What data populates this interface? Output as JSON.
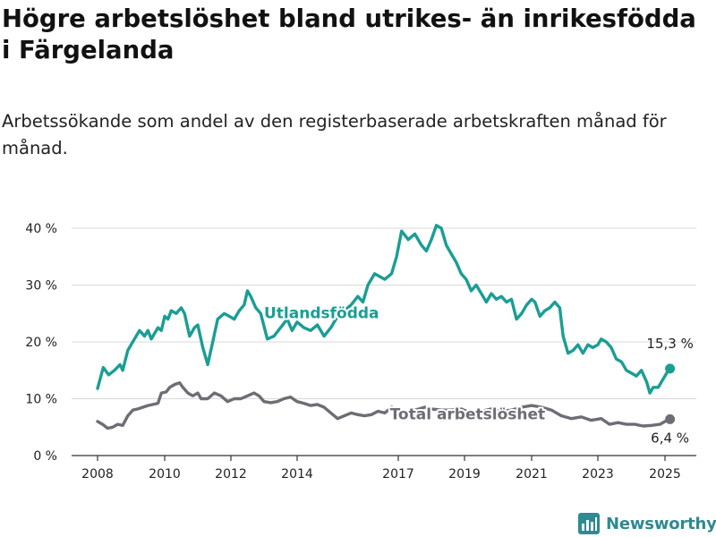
{
  "header": {
    "title": "Högre arbetslöshet bland utrikes- än inrikesfödda i Färgelanda",
    "subtitle": "Arbetssökande som andel av den registerbaserade arbetskraften månad för månad."
  },
  "brand": {
    "name": "Newsworthy",
    "icon": "newsworthy-chart-icon",
    "color": "#2f8a91"
  },
  "chart_data": {
    "type": "line",
    "title": "Högre arbetslöshet bland utrikes- än inrikesfödda i Färgelanda",
    "subtitle": "Arbetssökande som andel av den registerbaserade arbetskraften månad för månad.",
    "xlabel": "",
    "ylabel": "",
    "ylim": [
      0,
      40
    ],
    "xlim": [
      2007.6,
      2025.4
    ],
    "y_ticks": [
      0,
      10,
      20,
      30,
      40
    ],
    "y_tick_labels": [
      "0 %",
      "10 %",
      "20 %",
      "30 %",
      "40 %"
    ],
    "x_ticks": [
      2008,
      2010,
      2012,
      2014,
      2017,
      2019,
      2021,
      2023,
      2025
    ],
    "x_tick_labels": [
      "2008",
      "2010",
      "2012",
      "2014",
      "2017",
      "2019",
      "2021",
      "2023",
      "2025"
    ],
    "grid": "horizontal",
    "series": [
      {
        "name": "Utlandsfödda",
        "color": "#1a9e94",
        "end_label": "15,3 %",
        "points": [
          [
            2008.0,
            11.8
          ],
          [
            2008.17,
            15.5
          ],
          [
            2008.33,
            14.2
          ],
          [
            2008.5,
            15.0
          ],
          [
            2008.67,
            16.0
          ],
          [
            2008.75,
            15.0
          ],
          [
            2008.9,
            18.5
          ],
          [
            2009.1,
            20.5
          ],
          [
            2009.25,
            22.0
          ],
          [
            2009.4,
            21.0
          ],
          [
            2009.5,
            22.0
          ],
          [
            2009.6,
            20.5
          ],
          [
            2009.8,
            22.5
          ],
          [
            2009.9,
            22.0
          ],
          [
            2010.0,
            24.5
          ],
          [
            2010.1,
            24.0
          ],
          [
            2010.2,
            25.5
          ],
          [
            2010.35,
            25.0
          ],
          [
            2010.5,
            26.0
          ],
          [
            2010.6,
            25.0
          ],
          [
            2010.75,
            21.0
          ],
          [
            2010.9,
            22.5
          ],
          [
            2011.0,
            23.0
          ],
          [
            2011.15,
            19.0
          ],
          [
            2011.3,
            16.0
          ],
          [
            2011.45,
            20.0
          ],
          [
            2011.6,
            24.0
          ],
          [
            2011.8,
            25.0
          ],
          [
            2011.95,
            24.5
          ],
          [
            2012.1,
            24.0
          ],
          [
            2012.25,
            25.5
          ],
          [
            2012.4,
            26.5
          ],
          [
            2012.5,
            29.0
          ],
          [
            2012.6,
            28.0
          ],
          [
            2012.75,
            26.0
          ],
          [
            2012.9,
            25.0
          ],
          [
            2013.1,
            20.5
          ],
          [
            2013.3,
            21.0
          ],
          [
            2013.5,
            22.5
          ],
          [
            2013.7,
            24.0
          ],
          [
            2013.85,
            22.0
          ],
          [
            2014.0,
            23.5
          ],
          [
            2014.2,
            22.5
          ],
          [
            2014.4,
            22.0
          ],
          [
            2014.6,
            23.0
          ],
          [
            2014.8,
            21.0
          ],
          [
            2015.0,
            22.5
          ],
          [
            2015.2,
            24.5
          ],
          [
            2015.4,
            25.5
          ],
          [
            2015.6,
            26.5
          ],
          [
            2015.8,
            28.0
          ],
          [
            2015.95,
            27.0
          ],
          [
            2016.1,
            30.0
          ],
          [
            2016.3,
            32.0
          ],
          [
            2016.45,
            31.5
          ],
          [
            2016.6,
            31.0
          ],
          [
            2016.8,
            32.0
          ],
          [
            2016.95,
            35.0
          ],
          [
            2017.1,
            39.5
          ],
          [
            2017.3,
            38.0
          ],
          [
            2017.5,
            39.0
          ],
          [
            2017.7,
            37.0
          ],
          [
            2017.85,
            36.0
          ],
          [
            2018.0,
            38.0
          ],
          [
            2018.15,
            40.5
          ],
          [
            2018.3,
            40.0
          ],
          [
            2018.45,
            37.0
          ],
          [
            2018.6,
            35.5
          ],
          [
            2018.75,
            34.0
          ],
          [
            2018.9,
            32.0
          ],
          [
            2019.05,
            31.0
          ],
          [
            2019.2,
            29.0
          ],
          [
            2019.35,
            30.0
          ],
          [
            2019.5,
            28.5
          ],
          [
            2019.65,
            27.0
          ],
          [
            2019.8,
            28.5
          ],
          [
            2019.95,
            27.5
          ],
          [
            2020.1,
            28.0
          ],
          [
            2020.25,
            27.0
          ],
          [
            2020.4,
            27.5
          ],
          [
            2020.55,
            24.0
          ],
          [
            2020.7,
            25.0
          ],
          [
            2020.85,
            26.5
          ],
          [
            2021.0,
            27.5
          ],
          [
            2021.1,
            27.0
          ],
          [
            2021.25,
            24.5
          ],
          [
            2021.4,
            25.5
          ],
          [
            2021.55,
            26.0
          ],
          [
            2021.7,
            27.0
          ],
          [
            2021.85,
            26.0
          ],
          [
            2021.95,
            21.0
          ],
          [
            2022.1,
            18.0
          ],
          [
            2022.25,
            18.5
          ],
          [
            2022.4,
            19.5
          ],
          [
            2022.55,
            18.0
          ],
          [
            2022.7,
            19.5
          ],
          [
            2022.85,
            19.0
          ],
          [
            2023.0,
            19.5
          ],
          [
            2023.1,
            20.5
          ],
          [
            2023.25,
            20.0
          ],
          [
            2023.4,
            19.0
          ],
          [
            2023.55,
            17.0
          ],
          [
            2023.7,
            16.5
          ],
          [
            2023.85,
            15.0
          ],
          [
            2024.0,
            14.5
          ],
          [
            2024.15,
            14.0
          ],
          [
            2024.3,
            15.0
          ],
          [
            2024.45,
            13.0
          ],
          [
            2024.55,
            11.0
          ],
          [
            2024.65,
            12.0
          ],
          [
            2024.8,
            12.0
          ],
          [
            2024.95,
            13.5
          ],
          [
            2025.05,
            14.5
          ],
          [
            2025.15,
            15.3
          ]
        ]
      },
      {
        "name": "Total arbetslöshet",
        "color": "#6d6d75",
        "end_label": "6,4 %",
        "points": [
          [
            2008.0,
            6.0
          ],
          [
            2008.15,
            5.5
          ],
          [
            2008.3,
            4.8
          ],
          [
            2008.45,
            5.0
          ],
          [
            2008.6,
            5.5
          ],
          [
            2008.75,
            5.3
          ],
          [
            2008.9,
            7.0
          ],
          [
            2009.05,
            8.0
          ],
          [
            2009.2,
            8.2
          ],
          [
            2009.35,
            8.5
          ],
          [
            2009.5,
            8.8
          ],
          [
            2009.65,
            9.0
          ],
          [
            2009.8,
            9.2
          ],
          [
            2009.9,
            11.0
          ],
          [
            2010.05,
            11.2
          ],
          [
            2010.15,
            12.0
          ],
          [
            2010.3,
            12.5
          ],
          [
            2010.45,
            12.8
          ],
          [
            2010.55,
            12.0
          ],
          [
            2010.7,
            11.0
          ],
          [
            2010.85,
            10.5
          ],
          [
            2011.0,
            11.0
          ],
          [
            2011.1,
            10.0
          ],
          [
            2011.3,
            10.0
          ],
          [
            2011.5,
            11.0
          ],
          [
            2011.7,
            10.5
          ],
          [
            2011.9,
            9.5
          ],
          [
            2012.1,
            10.0
          ],
          [
            2012.3,
            10.0
          ],
          [
            2012.5,
            10.5
          ],
          [
            2012.7,
            11.0
          ],
          [
            2012.85,
            10.5
          ],
          [
            2013.0,
            9.5
          ],
          [
            2013.2,
            9.3
          ],
          [
            2013.4,
            9.5
          ],
          [
            2013.6,
            10.0
          ],
          [
            2013.8,
            10.3
          ],
          [
            2014.0,
            9.5
          ],
          [
            2014.2,
            9.2
          ],
          [
            2014.4,
            8.8
          ],
          [
            2014.6,
            9.0
          ],
          [
            2014.8,
            8.5
          ],
          [
            2015.0,
            7.5
          ],
          [
            2015.2,
            6.5
          ],
          [
            2015.4,
            7.0
          ],
          [
            2015.6,
            7.5
          ],
          [
            2015.8,
            7.2
          ],
          [
            2016.0,
            7.0
          ],
          [
            2016.2,
            7.2
          ],
          [
            2016.4,
            7.8
          ],
          [
            2016.6,
            7.5
          ],
          [
            2016.8,
            8.5
          ],
          [
            2017.0,
            8.0
          ],
          [
            2017.2,
            7.5
          ],
          [
            2017.5,
            8.0
          ],
          [
            2017.8,
            8.5
          ],
          [
            2018.0,
            8.2
          ],
          [
            2018.3,
            8.0
          ],
          [
            2018.6,
            8.0
          ],
          [
            2018.9,
            8.2
          ],
          [
            2019.2,
            7.5
          ],
          [
            2019.5,
            7.8
          ],
          [
            2019.8,
            8.2
          ],
          [
            2020.1,
            7.8
          ],
          [
            2020.4,
            8.0
          ],
          [
            2020.7,
            8.5
          ],
          [
            2021.0,
            8.8
          ],
          [
            2021.3,
            8.5
          ],
          [
            2021.6,
            8.0
          ],
          [
            2021.9,
            7.0
          ],
          [
            2022.2,
            6.5
          ],
          [
            2022.5,
            6.8
          ],
          [
            2022.8,
            6.2
          ],
          [
            2023.1,
            6.5
          ],
          [
            2023.35,
            5.5
          ],
          [
            2023.6,
            5.8
          ],
          [
            2023.85,
            5.5
          ],
          [
            2024.1,
            5.5
          ],
          [
            2024.35,
            5.2
          ],
          [
            2024.6,
            5.3
          ],
          [
            2024.85,
            5.5
          ],
          [
            2025.0,
            6.0
          ],
          [
            2025.15,
            6.4
          ]
        ]
      }
    ]
  }
}
